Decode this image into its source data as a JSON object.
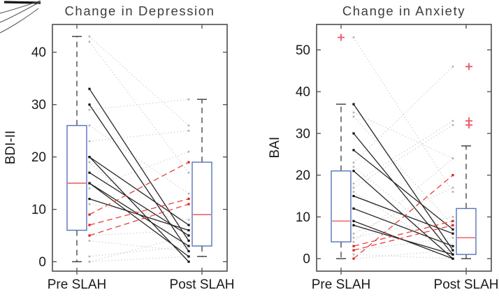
{
  "figure": {
    "left_title": "Change in Depression",
    "right_title": "Change in Anxiety",
    "categories": [
      "Pre SLAH",
      "Post SLAH"
    ]
  },
  "colors": {
    "box_edge": "#5572bb",
    "median": "#ef6f6f",
    "outlier": "#ed5565",
    "decrease_line": "#262626",
    "increase_line": "#e8403a",
    "other_line": "#c3c3c3",
    "axis": "#4d4d4d",
    "text": "#1a1a1a",
    "title": "#3d3d3d"
  },
  "chart_data": [
    {
      "type": "boxplot_paired_lines",
      "title": "Change in Depression",
      "ylabel": "BDI-II",
      "categories": [
        "Pre SLAH",
        "Post SLAH"
      ],
      "ylim": [
        -1.8,
        45.3
      ],
      "yticks": [
        0,
        10,
        20,
        30,
        40
      ],
      "grid": false,
      "boxes": {
        "pre": {
          "whisker_low": 0,
          "q1": 6,
          "median": 15,
          "q3": 26,
          "whisker_high": 43,
          "outliers": []
        },
        "post": {
          "whisker_low": 1,
          "q1": 3,
          "median": 9,
          "q3": 19,
          "whisker_high": 31,
          "outliers": []
        }
      },
      "series": [
        {
          "name": "no-reliable-change",
          "style": "dotted",
          "color": "#c3c3c3",
          "marker": "#b0b0b0",
          "marker_size": 2.6,
          "pairs": [
            [
              43,
              26
            ],
            [
              42,
              17
            ],
            [
              29,
              31
            ],
            [
              26,
              13
            ],
            [
              23,
              25
            ],
            [
              19,
              2
            ],
            [
              14,
              21
            ],
            [
              11,
              8
            ],
            [
              5,
              6
            ],
            [
              4,
              2
            ],
            [
              1,
              3
            ],
            [
              0,
              1
            ],
            [
              0,
              5
            ]
          ]
        },
        {
          "name": "decrease",
          "style": "solid",
          "color": "#262626",
          "marker": "#111111",
          "marker_size": 3.2,
          "pairs": [
            [
              33,
              4
            ],
            [
              30,
              2
            ],
            [
              20,
              7
            ],
            [
              20,
              0
            ],
            [
              17,
              5
            ],
            [
              15,
              3
            ],
            [
              15,
              1
            ],
            [
              12,
              6
            ]
          ]
        },
        {
          "name": "increase",
          "style": "dashed",
          "color": "#e8403a",
          "marker": "#d42420",
          "marker_size": 3.2,
          "pairs": [
            [
              9,
              19
            ],
            [
              7,
              12
            ],
            [
              5,
              11
            ]
          ]
        }
      ]
    },
    {
      "type": "boxplot_paired_lines",
      "title": "Change in Anxiety",
      "ylabel": "BAI",
      "categories": [
        "Pre SLAH",
        "Post SLAH"
      ],
      "ylim": [
        -3.0,
        56.1
      ],
      "yticks": [
        0,
        10,
        20,
        30,
        40,
        50
      ],
      "grid": false,
      "boxes": {
        "pre": {
          "whisker_low": 0,
          "q1": 4,
          "median": 9,
          "q3": 21,
          "whisker_high": 37,
          "outliers": [
            53
          ]
        },
        "post": {
          "whisker_low": 0,
          "q1": 1,
          "median": 5,
          "q3": 12,
          "whisker_high": 27,
          "outliers": [
            46,
            33,
            32
          ]
        }
      },
      "series": [
        {
          "name": "no-reliable-change",
          "style": "dotted",
          "color": "#c3c3c3",
          "marker": "#b0b0b0",
          "marker_size": 2.6,
          "pairs": [
            [
              53,
              16
            ],
            [
              35,
              24
            ],
            [
              34,
              8
            ],
            [
              23,
              46
            ],
            [
              22,
              3
            ],
            [
              18,
              33
            ],
            [
              17,
              32
            ],
            [
              16,
              1
            ],
            [
              6,
              17
            ],
            [
              5,
              10
            ],
            [
              4,
              24
            ],
            [
              2,
              5
            ],
            [
              1,
              0
            ],
            [
              0,
              2
            ]
          ]
        },
        {
          "name": "decrease",
          "style": "solid",
          "color": "#262626",
          "marker": "#111111",
          "marker_size": 3.2,
          "pairs": [
            [
              37,
              2
            ],
            [
              30,
              1
            ],
            [
              26,
              7
            ],
            [
              21,
              0
            ],
            [
              15,
              6
            ],
            [
              12,
              3
            ],
            [
              9,
              0
            ],
            [
              8,
              1
            ]
          ]
        },
        {
          "name": "increase",
          "style": "dashed",
          "color": "#e8403a",
          "marker": "#d42420",
          "marker_size": 3.2,
          "pairs": [
            [
              3,
              9
            ],
            [
              2,
              8
            ],
            [
              0,
              20
            ]
          ]
        }
      ]
    }
  ]
}
